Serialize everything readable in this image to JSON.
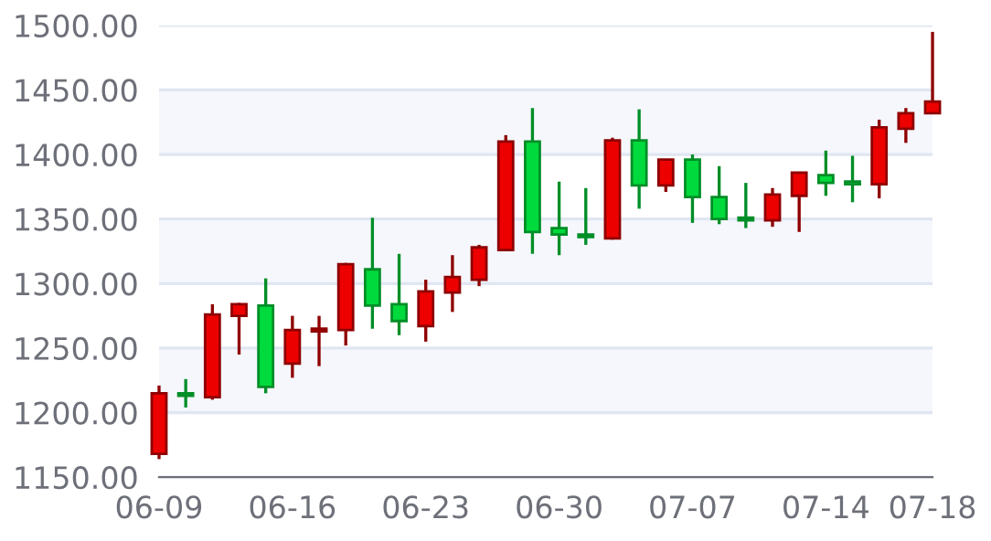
{
  "chart_data": {
    "type": "candlestick",
    "categories": [
      "06-09",
      null,
      null,
      null,
      null,
      "06-16",
      null,
      null,
      null,
      null,
      "06-23",
      null,
      null,
      null,
      null,
      "06-30",
      null,
      null,
      null,
      null,
      "07-07",
      null,
      null,
      null,
      null,
      "07-14",
      null,
      null,
      null,
      "07-18"
    ],
    "ohlc": [
      [
        1168,
        1221,
        1164,
        1215
      ],
      [
        1215,
        1226,
        1204,
        1213
      ],
      [
        1212,
        1284,
        1210,
        1276
      ],
      [
        1275,
        1285,
        1245,
        1284
      ],
      [
        1283,
        1304,
        1215,
        1220
      ],
      [
        1238,
        1275,
        1227,
        1264
      ],
      [
        1263,
        1275,
        1236,
        1265
      ],
      [
        1264,
        1316,
        1252,
        1315
      ],
      [
        1311,
        1351,
        1265,
        1283
      ],
      [
        1284,
        1323,
        1260,
        1271
      ],
      [
        1267,
        1303,
        1255,
        1294
      ],
      [
        1293,
        1322,
        1278,
        1305
      ],
      [
        1303,
        1330,
        1298,
        1328
      ],
      [
        1326,
        1415,
        1326,
        1410
      ],
      [
        1410,
        1436,
        1323,
        1340
      ],
      [
        1343,
        1379,
        1322,
        1338
      ],
      [
        1338,
        1374,
        1330,
        1336
      ],
      [
        1335,
        1413,
        1334,
        1411
      ],
      [
        1411,
        1435,
        1358,
        1376
      ],
      [
        1376,
        1396,
        1371,
        1396
      ],
      [
        1396,
        1400,
        1347,
        1367
      ],
      [
        1367,
        1391,
        1346,
        1350
      ],
      [
        1351,
        1378,
        1343,
        1349
      ],
      [
        1349,
        1374,
        1344,
        1369
      ],
      [
        1368,
        1386,
        1340,
        1386
      ],
      [
        1384,
        1403,
        1368,
        1378
      ],
      [
        1379,
        1399,
        1363,
        1377
      ],
      [
        1377,
        1427,
        1366,
        1421
      ],
      [
        1420,
        1436,
        1409,
        1432
      ],
      [
        1432,
        1495,
        1432,
        1441
      ]
    ],
    "colors": [
      "#ec0000",
      "#00da3c",
      "#ec0000",
      "#ec0000",
      "#00da3c",
      "#ec0000",
      "#ec0000",
      "#ec0000",
      "#00da3c",
      "#00da3c",
      "#ec0000",
      "#ec0000",
      "#ec0000",
      "#ec0000",
      "#00da3c",
      "#00da3c",
      "#00da3c",
      "#ec0000",
      "#00da3c",
      "#ec0000",
      "#00da3c",
      "#00da3c",
      "#00da3c",
      "#ec0000",
      "#ec0000",
      "#00da3c",
      "#00da3c",
      "#ec0000",
      "#ec0000",
      "#ec0000"
    ],
    "ylim": [
      1150,
      1500
    ],
    "yticks": [
      {
        "value": 1150,
        "label": "1150.00"
      },
      {
        "value": 1200,
        "label": "1200.00"
      },
      {
        "value": 1250,
        "label": "1250.00"
      },
      {
        "value": 1300,
        "label": "1300.00"
      },
      {
        "value": 1350,
        "label": "1350.00"
      },
      {
        "value": 1400,
        "label": "1400.00"
      },
      {
        "value": 1450,
        "label": "1450.00"
      },
      {
        "value": 1500,
        "label": "1500.00"
      }
    ],
    "grid": "y"
  }
}
